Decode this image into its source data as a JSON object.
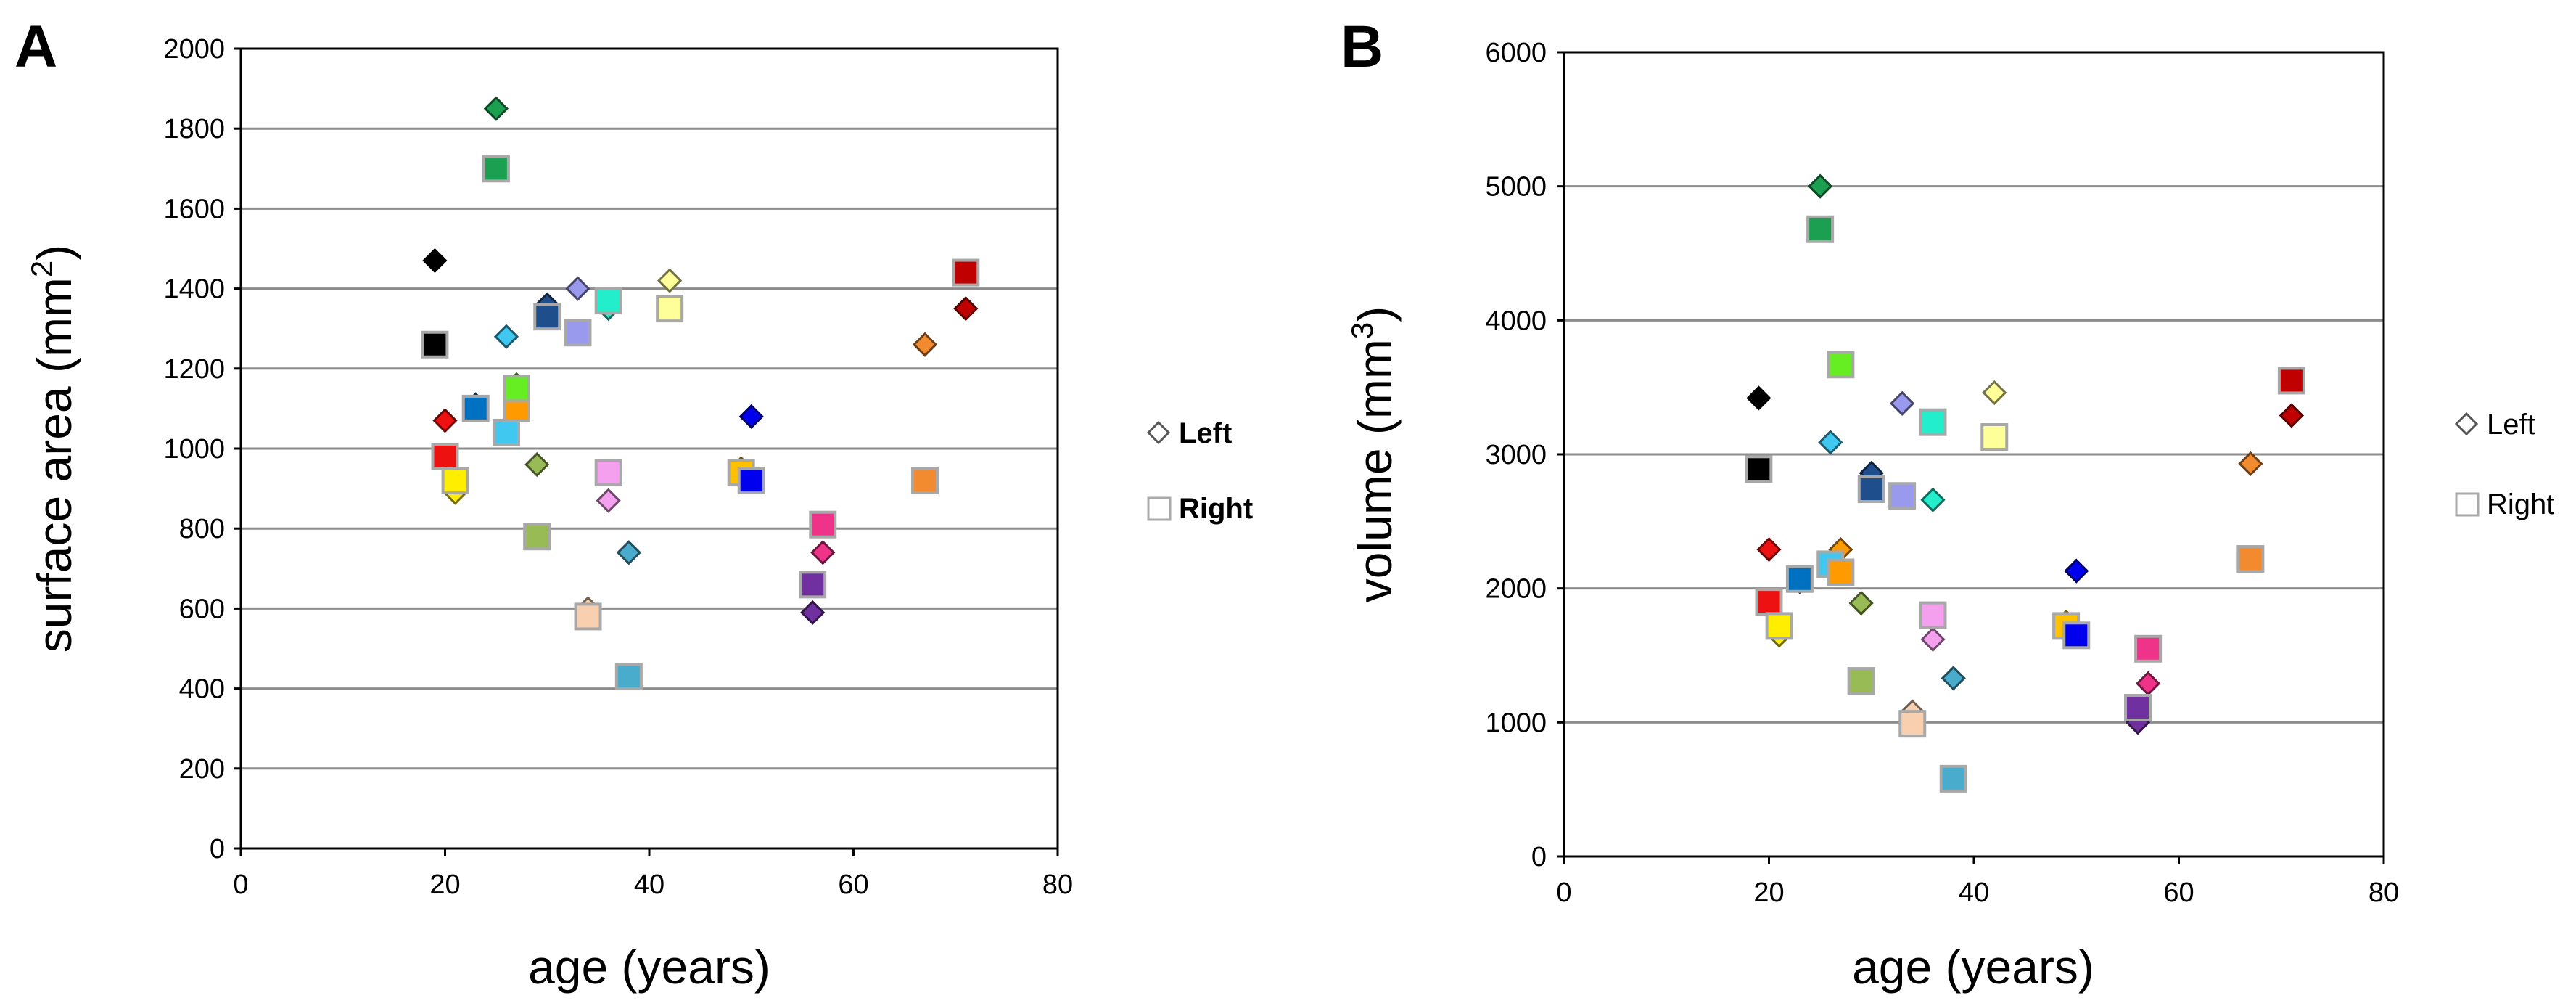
{
  "panels": [
    {
      "letter": "A",
      "ylabel_main": "surface area (mm",
      "ylabel_sup": "2",
      "ylabel_close": ")",
      "xlabel": "age (years)",
      "legend": {
        "left": "Left",
        "right": "Right"
      }
    },
    {
      "letter": "B",
      "ylabel_main": "volume (mm",
      "ylabel_sup": "3",
      "ylabel_close": ")",
      "xlabel": "age (years)",
      "legend": {
        "left": "Left",
        "right": "Right"
      }
    }
  ],
  "chart_data": [
    {
      "type": "scatter",
      "title": "A",
      "xlabel": "age (years)",
      "ylabel": "surface area (mm2)",
      "xlim": [
        0,
        80
      ],
      "ylim": [
        0,
        2000
      ],
      "xticks": [
        0,
        20,
        40,
        60,
        80
      ],
      "yticks": [
        0,
        200,
        400,
        600,
        800,
        1000,
        1200,
        1400,
        1600,
        1800,
        2000
      ],
      "grid": "horizontal",
      "legend_position": "right",
      "series": [
        {
          "name": "Left",
          "marker": "diamond",
          "points": [
            {
              "x": 19,
              "y": 1470,
              "color": "#000000"
            },
            {
              "x": 20,
              "y": 1070,
              "color": "#ee1111"
            },
            {
              "x": 21,
              "y": 890,
              "color": "#ffee00"
            },
            {
              "x": 23,
              "y": 1110,
              "color": "#0070c0"
            },
            {
              "x": 25,
              "y": 1850,
              "color": "#1aa050"
            },
            {
              "x": 26,
              "y": 1280,
              "color": "#40c8f0"
            },
            {
              "x": 27,
              "y": 1130,
              "color": "#ff9a00"
            },
            {
              "x": 27,
              "y": 1160,
              "color": "#66ee22"
            },
            {
              "x": 29,
              "y": 960,
              "color": "#99bb55"
            },
            {
              "x": 30,
              "y": 1360,
              "color": "#1f4e8c"
            },
            {
              "x": 33,
              "y": 1400,
              "color": "#9999ee"
            },
            {
              "x": 34,
              "y": 600,
              "color": "#f8d0b0"
            },
            {
              "x": 36,
              "y": 870,
              "color": "#f4a0ee"
            },
            {
              "x": 36,
              "y": 1350,
              "color": "#22eecc"
            },
            {
              "x": 38,
              "y": 740,
              "color": "#4aaccc"
            },
            {
              "x": 42,
              "y": 1420,
              "color": "#ffff99"
            },
            {
              "x": 49,
              "y": 950,
              "color": "#ffc000"
            },
            {
              "x": 50,
              "y": 1080,
              "color": "#0000ee"
            },
            {
              "x": 56,
              "y": 590,
              "color": "#7030a0"
            },
            {
              "x": 57,
              "y": 740,
              "color": "#ee3388"
            },
            {
              "x": 67,
              "y": 1260,
              "color": "#f28a30"
            },
            {
              "x": 71,
              "y": 1350,
              "color": "#c00000"
            }
          ]
        },
        {
          "name": "Right",
          "marker": "square",
          "points": [
            {
              "x": 19,
              "y": 1260,
              "color": "#000000"
            },
            {
              "x": 20,
              "y": 980,
              "color": "#ee1111"
            },
            {
              "x": 21,
              "y": 920,
              "color": "#ffee00"
            },
            {
              "x": 23,
              "y": 1100,
              "color": "#0070c0"
            },
            {
              "x": 25,
              "y": 1700,
              "color": "#1aa050"
            },
            {
              "x": 26,
              "y": 1040,
              "color": "#40c8f0"
            },
            {
              "x": 27,
              "y": 1100,
              "color": "#ff9a00"
            },
            {
              "x": 27,
              "y": 1150,
              "color": "#66ee22"
            },
            {
              "x": 29,
              "y": 780,
              "color": "#99bb55"
            },
            {
              "x": 30,
              "y": 1330,
              "color": "#1f4e8c"
            },
            {
              "x": 33,
              "y": 1290,
              "color": "#9999ee"
            },
            {
              "x": 34,
              "y": 580,
              "color": "#f8d0b0"
            },
            {
              "x": 36,
              "y": 940,
              "color": "#f4a0ee"
            },
            {
              "x": 36,
              "y": 1370,
              "color": "#22eecc"
            },
            {
              "x": 38,
              "y": 430,
              "color": "#4aaccc"
            },
            {
              "x": 42,
              "y": 1350,
              "color": "#ffff99"
            },
            {
              "x": 49,
              "y": 940,
              "color": "#ffc000"
            },
            {
              "x": 50,
              "y": 920,
              "color": "#0000ee"
            },
            {
              "x": 56,
              "y": 660,
              "color": "#7030a0"
            },
            {
              "x": 57,
              "y": 810,
              "color": "#ee3388"
            },
            {
              "x": 67,
              "y": 920,
              "color": "#f28a30"
            },
            {
              "x": 71,
              "y": 1440,
              "color": "#c00000"
            }
          ]
        }
      ]
    },
    {
      "type": "scatter",
      "title": "B",
      "xlabel": "age (years)",
      "ylabel": "volume (mm3)",
      "xlim": [
        0,
        80
      ],
      "ylim": [
        0,
        6000
      ],
      "xticks": [
        0,
        20,
        40,
        60,
        80
      ],
      "yticks": [
        0,
        1000,
        2000,
        3000,
        4000,
        5000,
        6000
      ],
      "grid": "horizontal",
      "legend_position": "right",
      "series": [
        {
          "name": "Left",
          "marker": "diamond",
          "points": [
            {
              "x": 19,
              "y": 3420,
              "color": "#000000"
            },
            {
              "x": 20,
              "y": 2290,
              "color": "#ee1111"
            },
            {
              "x": 21,
              "y": 1650,
              "color": "#ffee00"
            },
            {
              "x": 23,
              "y": 2050,
              "color": "#0070c0"
            },
            {
              "x": 25,
              "y": 5000,
              "color": "#1aa050"
            },
            {
              "x": 26,
              "y": 3090,
              "color": "#40c8f0"
            },
            {
              "x": 27,
              "y": 2290,
              "color": "#ff9a00"
            },
            {
              "x": 27,
              "y": 3680,
              "color": "#66ee22"
            },
            {
              "x": 29,
              "y": 1890,
              "color": "#99bb55"
            },
            {
              "x": 30,
              "y": 2860,
              "color": "#1f4e8c"
            },
            {
              "x": 33,
              "y": 3380,
              "color": "#9999ee"
            },
            {
              "x": 34,
              "y": 1080,
              "color": "#f8d0b0"
            },
            {
              "x": 36,
              "y": 1620,
              "color": "#f4a0ee"
            },
            {
              "x": 36,
              "y": 2660,
              "color": "#22eecc"
            },
            {
              "x": 38,
              "y": 1330,
              "color": "#4aaccc"
            },
            {
              "x": 42,
              "y": 3460,
              "color": "#ffff99"
            },
            {
              "x": 49,
              "y": 1750,
              "color": "#ffc000"
            },
            {
              "x": 50,
              "y": 2130,
              "color": "#0000ee"
            },
            {
              "x": 56,
              "y": 1000,
              "color": "#7030a0"
            },
            {
              "x": 57,
              "y": 1290,
              "color": "#ee3388"
            },
            {
              "x": 67,
              "y": 2930,
              "color": "#f28a30"
            },
            {
              "x": 71,
              "y": 3290,
              "color": "#c00000"
            }
          ]
        },
        {
          "name": "Right",
          "marker": "square",
          "points": [
            {
              "x": 19,
              "y": 2890,
              "color": "#000000"
            },
            {
              "x": 20,
              "y": 1900,
              "color": "#ee1111"
            },
            {
              "x": 21,
              "y": 1720,
              "color": "#ffee00"
            },
            {
              "x": 23,
              "y": 2070,
              "color": "#0070c0"
            },
            {
              "x": 25,
              "y": 4680,
              "color": "#1aa050"
            },
            {
              "x": 26,
              "y": 2180,
              "color": "#40c8f0"
            },
            {
              "x": 27,
              "y": 2120,
              "color": "#ff9a00"
            },
            {
              "x": 27,
              "y": 3670,
              "color": "#66ee22"
            },
            {
              "x": 29,
              "y": 1310,
              "color": "#99bb55"
            },
            {
              "x": 30,
              "y": 2740,
              "color": "#1f4e8c"
            },
            {
              "x": 33,
              "y": 2690,
              "color": "#9999ee"
            },
            {
              "x": 34,
              "y": 990,
              "color": "#f8d0b0"
            },
            {
              "x": 36,
              "y": 1800,
              "color": "#f4a0ee"
            },
            {
              "x": 36,
              "y": 3240,
              "color": "#22eecc"
            },
            {
              "x": 38,
              "y": 580,
              "color": "#4aaccc"
            },
            {
              "x": 42,
              "y": 3130,
              "color": "#ffff99"
            },
            {
              "x": 49,
              "y": 1720,
              "color": "#ffc000"
            },
            {
              "x": 50,
              "y": 1650,
              "color": "#0000ee"
            },
            {
              "x": 56,
              "y": 1110,
              "color": "#7030a0"
            },
            {
              "x": 57,
              "y": 1550,
              "color": "#ee3388"
            },
            {
              "x": 67,
              "y": 2220,
              "color": "#f28a30"
            },
            {
              "x": 71,
              "y": 3550,
              "color": "#c00000"
            }
          ]
        }
      ]
    }
  ]
}
